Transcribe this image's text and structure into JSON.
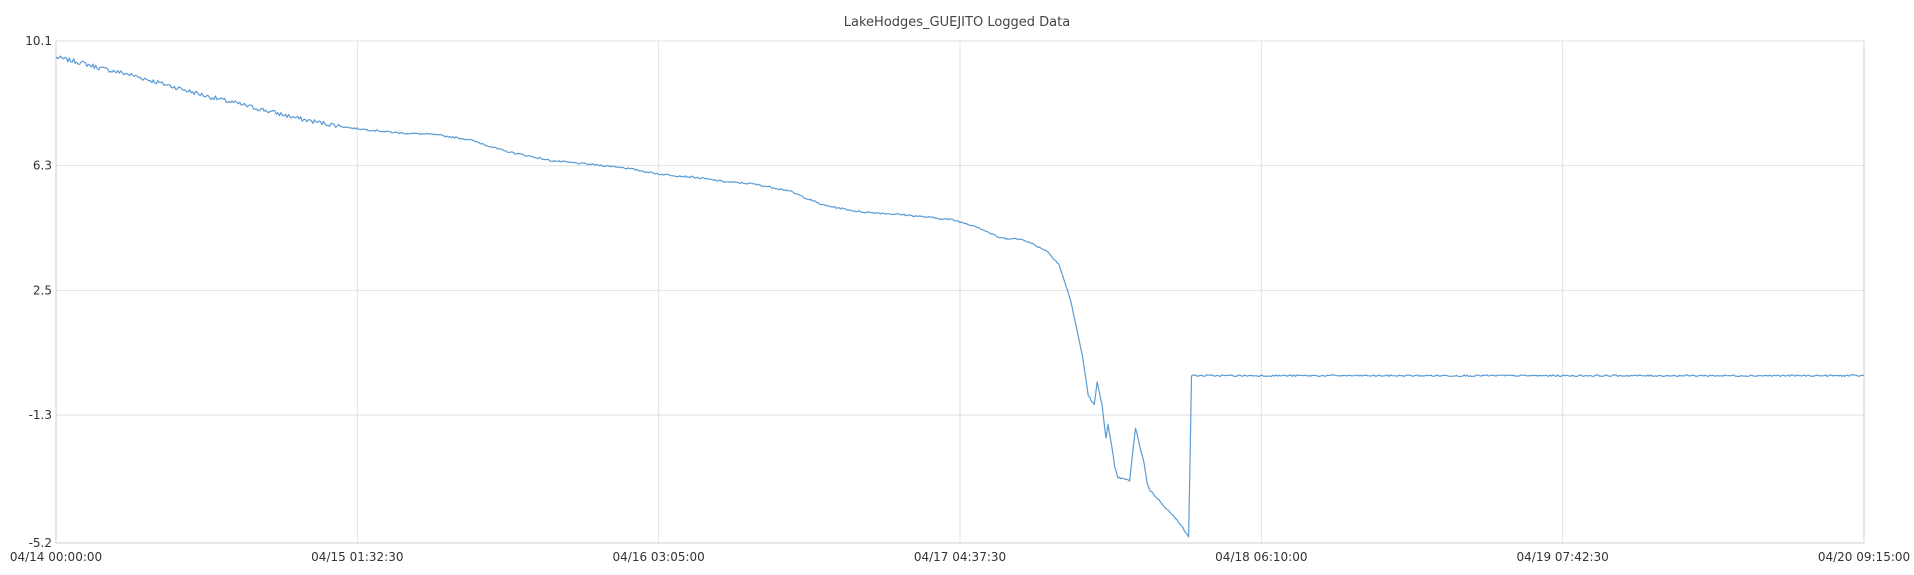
{
  "chart_data": {
    "type": "line",
    "title": "LakeHodges_GUEJITO Logged Data",
    "xlabel": "",
    "ylabel": "",
    "grid": true,
    "x_tick_labels": [
      "04/14 00:00:00",
      "04/15 01:32:30",
      "04/16 03:05:00",
      "04/17 04:37:30",
      "04/18 06:10:00",
      "04/19 07:42:30",
      "04/20 09:15:00"
    ],
    "y_tick_labels": [
      "10.1",
      "6.3",
      "2.5",
      "-1.3",
      "-5.2"
    ],
    "ylim": [
      -5.2,
      10.1
    ],
    "series": [
      {
        "color": "#5b9bd5",
        "x": [
          "04/14 00:00:00",
          "04/14 02:00:00",
          "04/14 04:00:00",
          "04/14 06:00:00",
          "04/14 09:00:00",
          "04/14 13:00:00",
          "04/14 17:00:00",
          "04/14 21:00:00",
          "04/15 01:00:00",
          "04/15 05:00:00",
          "04/15 08:00:00",
          "04/15 11:00:00",
          "04/15 14:00:00",
          "04/15 18:00:00",
          "04/16 00:00:00",
          "04/16 03:00:00",
          "04/16 06:00:00",
          "04/16 09:00:00",
          "04/16 11:00:00",
          "04/16 14:00:00",
          "04/16 17:00:00",
          "04/16 20:00:00",
          "04/17 00:00:00",
          "04/17 04:00:00",
          "04/17 06:00:00",
          "04/17 08:00:00",
          "04/17 10:00:00",
          "04/17 12:00:00",
          "04/17 13:00:00",
          "04/17 14:00:00",
          "04/17 15:00:00",
          "04/17 15:30:00",
          "04/17 16:00:00",
          "04/17 16:15:00",
          "04/17 16:40:00",
          "04/17 17:00:00",
          "04/17 17:10:00",
          "04/17 17:30:00",
          "04/17 17:45:00",
          "04/17 18:00:00",
          "04/17 19:00:00",
          "04/17 19:30:00",
          "04/17 20:15:00",
          "04/17 20:30:00",
          "04/17 20:45:00",
          "04/17 21:30:00",
          "04/17 22:30:00",
          "04/17 23:30:00",
          "04/17 23:45:00",
          "04/18 00:00:00",
          "04/18 00:15:00",
          "04/18 06:00:00",
          "04/18 12:00:00",
          "04/18 18:00:00",
          "04/19 00:00:00",
          "04/19 06:00:00",
          "04/19 12:00:00",
          "04/19 18:00:00",
          "04/20 00:00:00",
          "04/20 06:00:00",
          "04/20 09:15:00"
        ],
        "y": [
          9.6,
          9.45,
          9.25,
          9.1,
          8.8,
          8.4,
          8.05,
          7.7,
          7.45,
          7.3,
          7.25,
          7.1,
          6.75,
          6.45,
          6.25,
          6.05,
          5.95,
          5.8,
          5.75,
          5.55,
          5.1,
          4.9,
          4.8,
          4.65,
          4.45,
          4.1,
          4.05,
          3.7,
          3.3,
          2.2,
          0.5,
          -0.7,
          -1.0,
          -0.3,
          -1.0,
          -2.0,
          -1.6,
          -2.3,
          -2.9,
          -3.2,
          -3.3,
          -1.7,
          -2.8,
          -3.4,
          -3.6,
          -3.9,
          -4.3,
          -4.7,
          -4.9,
          -5.0,
          -0.1,
          -0.1,
          -0.1,
          -0.1,
          -0.1,
          -0.1,
          -0.1,
          -0.1,
          -0.1,
          -0.1,
          -0.1
        ]
      }
    ]
  }
}
